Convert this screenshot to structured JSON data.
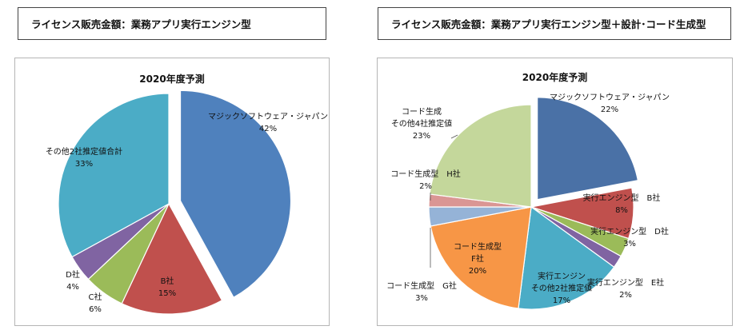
{
  "chart_data": [
    {
      "type": "pie",
      "header": "ライセンス販売金額：業務アプリ実行エンジン型",
      "title": "2020年度予測",
      "series": [
        {
          "name": "マジックソフトウェア・ジャパン",
          "value_label": "42%",
          "value": 42,
          "color": "#4f81bd"
        },
        {
          "name": "B社",
          "value_label": "15%",
          "value": 15,
          "color": "#c0504d"
        },
        {
          "name": "C社",
          "value_label": "6%",
          "value": 6,
          "color": "#9bbb59"
        },
        {
          "name": "D社",
          "value_label": "4%",
          "value": 4,
          "color": "#8064a2"
        },
        {
          "name": "その他2社推定値合計",
          "value_label": "33%",
          "value": 33,
          "color": "#4bacc6"
        }
      ]
    },
    {
      "type": "pie",
      "header": "ライセンス販売金額：業務アプリ実行エンジン型＋設計･コード生成型",
      "title": "2020年度予測",
      "series": [
        {
          "name": "マジックソフトウェア・ジャパン",
          "value_label": "22%",
          "value": 22,
          "color": "#4a71a6"
        },
        {
          "name": "実行エンジン型　B社",
          "value_label": "8%",
          "value": 8,
          "color": "#c0504d"
        },
        {
          "name": "実行エンジン型　D社",
          "value_label": "3%",
          "value": 3,
          "color": "#9bbb59"
        },
        {
          "name": "実行エンジン型　E社",
          "value_label": "2%",
          "value": 2,
          "color": "#8064a2"
        },
        {
          "name": "実行エンジン\nその他2社推定値",
          "value_label": "17%",
          "value": 17,
          "color": "#4bacc6"
        },
        {
          "name": "コード生成型\nF社",
          "value_label": "20%",
          "value": 20,
          "color": "#f79646"
        },
        {
          "name": "コード生成型　G社",
          "value_label": "3%",
          "value": 3,
          "color": "#95b3d7"
        },
        {
          "name": "コード生成型　H社",
          "value_label": "2%",
          "value": 2,
          "color": "#da9694"
        },
        {
          "name": "コード生成\nその他4社推定値",
          "value_label": "23%",
          "value": 23,
          "color": "#c4d79b"
        }
      ]
    }
  ]
}
